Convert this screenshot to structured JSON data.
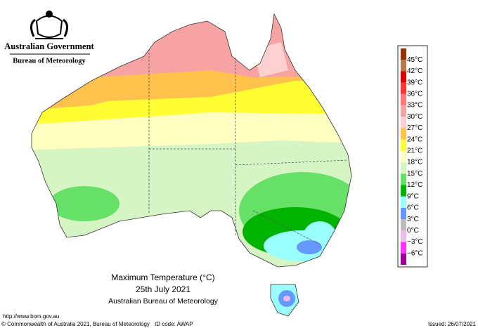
{
  "header": {
    "title": "Australian Government",
    "subtitle": "Bureau of Meteorology"
  },
  "legend": {
    "labels": [
      "45°C",
      "42°C",
      "39°C",
      "36°C",
      "33°C",
      "30°C",
      "27°C",
      "24°C",
      "21°C",
      "18°C",
      "15°C",
      "12°C",
      "9°C",
      "6°C",
      "3°C",
      "0°C",
      "−3°C",
      "−6°C"
    ],
    "colors": [
      "#993300",
      "#b87a4b",
      "#dd0000",
      "#ff3333",
      "#ff7777",
      "#f7a3a3",
      "#fbd0d0",
      "#ffc34d",
      "#ffff33",
      "#ffffc2",
      "#d6f5c4",
      "#66e066",
      "#00b300",
      "#99ffff",
      "#6699ff",
      "#bbbbbb",
      "#eebbee",
      "#ff33ff",
      "#990099"
    ]
  },
  "caption": {
    "title": "Maximum Temperature (°C)",
    "date": "25th July 2021",
    "source": "Australian Bureau of Meteorology"
  },
  "footer": {
    "url": "http://www.bom.gov.au",
    "copyright": "© Commonwealth of Australia 2021, Bureau of Meteorology",
    "id_code": "ID code: AWAP",
    "issued": "Issued: 26/07/2021"
  }
}
